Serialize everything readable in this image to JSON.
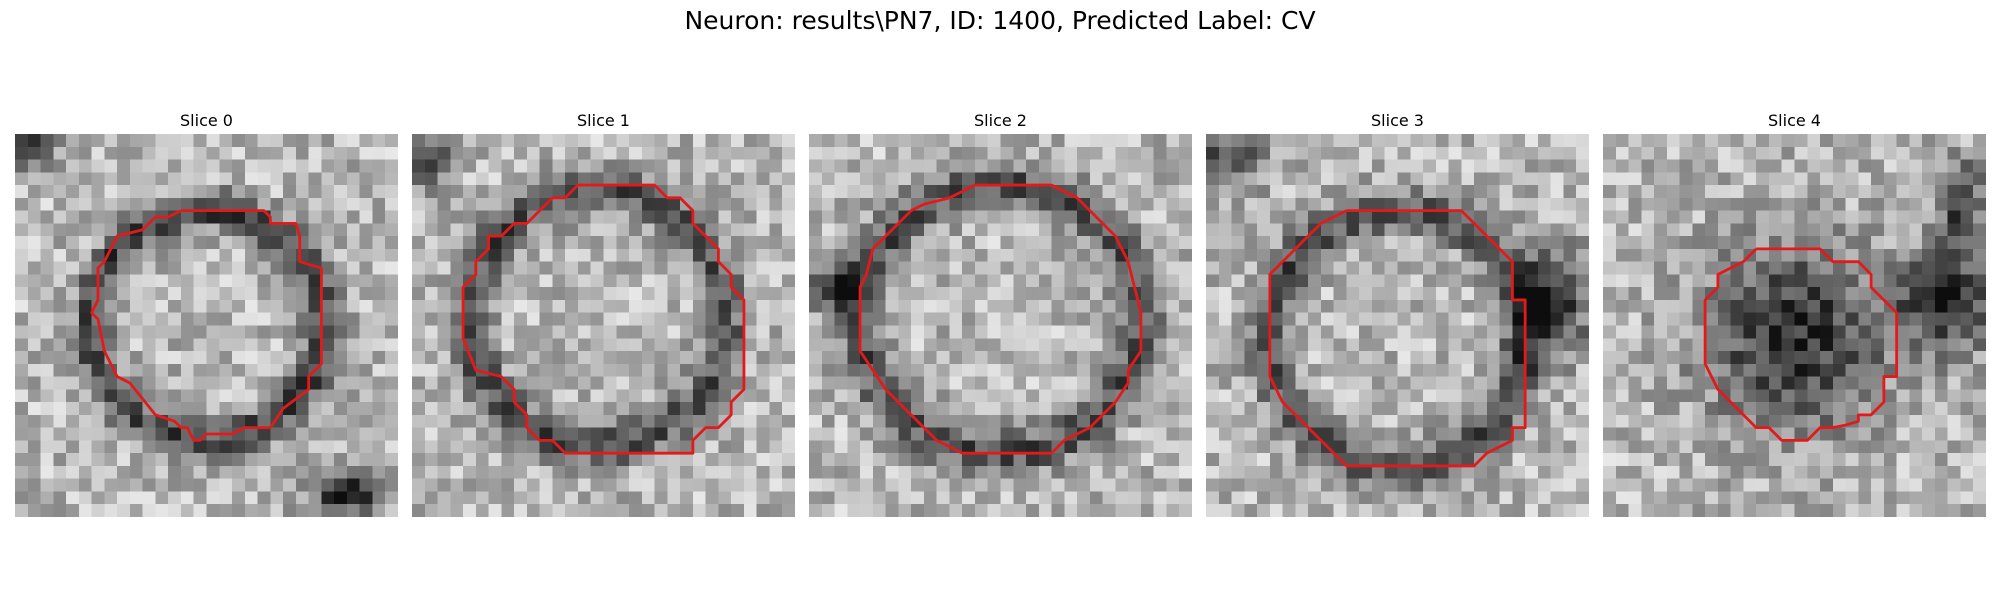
{
  "figure": {
    "suptitle": "Neuron: results\\PN7, ID: 1400, Predicted Label: CV"
  },
  "colors": {
    "contour": "#e31a1c",
    "colormap": "grayscale"
  },
  "panels": [
    {
      "title": "Slice 0"
    },
    {
      "title": "Slice 1"
    },
    {
      "title": "Slice 2"
    },
    {
      "title": "Slice 3"
    },
    {
      "title": "Slice 4"
    }
  ]
}
